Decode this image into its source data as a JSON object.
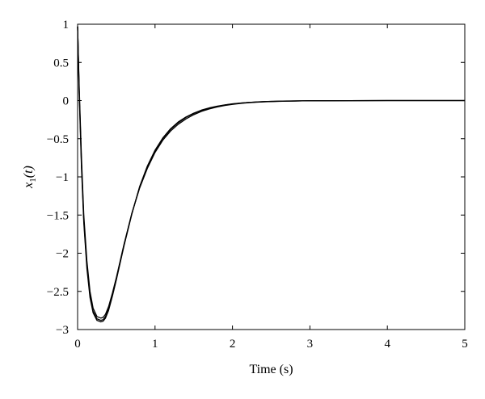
{
  "chart_data": {
    "type": "line",
    "title": "",
    "xlabel": "Time (s)",
    "ylabel": {
      "base": "x",
      "subscript": "1",
      "rest": "(t)"
    },
    "xlim": [
      0,
      5
    ],
    "ylim": [
      -3,
      1
    ],
    "xticks": [
      0,
      1,
      2,
      3,
      4,
      5
    ],
    "xtick_labels": [
      "0",
      "1",
      "2",
      "3",
      "4",
      "5"
    ],
    "yticks": [
      1,
      0.5,
      0,
      -0.5,
      -1,
      -1.5,
      -2,
      -2.5,
      -3
    ],
    "ytick_labels": [
      "1",
      "0.5",
      "0",
      "−0.5",
      "−1",
      "−1.5",
      "−2",
      "−2.5",
      "−3"
    ],
    "grid": false,
    "legend": "none",
    "line_color": "#000000",
    "series": [
      {
        "x": [
          0,
          0.02,
          0.05,
          0.08,
          0.12,
          0.16,
          0.2,
          0.25,
          0.3,
          0.33,
          0.36,
          0.4,
          0.45,
          0.5,
          0.6,
          0.7,
          0.8,
          0.9,
          1.0,
          1.1,
          1.2,
          1.3,
          1.4,
          1.5,
          1.6,
          1.7,
          1.8,
          1.9,
          2.0,
          2.1,
          2.2,
          2.3,
          2.4,
          2.5,
          2.6,
          2.7,
          2.8,
          2.9,
          3.0,
          3.2,
          3.5,
          4.0,
          4.5,
          5.0
        ],
        "y": [
          0.97,
          0.2,
          -0.75,
          -1.5,
          -2.1,
          -2.5,
          -2.72,
          -2.83,
          -2.85,
          -2.84,
          -2.8,
          -2.7,
          -2.52,
          -2.32,
          -1.88,
          -1.48,
          -1.15,
          -0.89,
          -0.68,
          -0.52,
          -0.4,
          -0.31,
          -0.24,
          -0.185,
          -0.142,
          -0.11,
          -0.085,
          -0.065,
          -0.05,
          -0.038,
          -0.029,
          -0.022,
          -0.017,
          -0.013,
          -0.01,
          -0.008,
          -0.006,
          -0.004,
          -0.003,
          -0.002,
          -0.001,
          0,
          0,
          0
        ]
      },
      {
        "x": [
          0,
          0.02,
          0.05,
          0.08,
          0.12,
          0.16,
          0.2,
          0.25,
          0.3,
          0.33,
          0.36,
          0.4,
          0.45,
          0.5,
          0.6,
          0.7,
          0.8,
          0.9,
          1.0,
          1.1,
          1.2,
          1.3,
          1.4,
          1.5,
          1.6,
          1.7,
          1.8,
          1.9,
          2.0,
          2.1,
          2.2,
          2.3,
          2.4,
          2.5,
          2.6,
          2.7,
          2.8,
          2.9,
          3.0,
          3.2,
          3.5,
          4.0,
          4.5,
          5.0
        ],
        "y": [
          0.97,
          0.15,
          -0.82,
          -1.56,
          -2.16,
          -2.55,
          -2.76,
          -2.86,
          -2.88,
          -2.87,
          -2.83,
          -2.73,
          -2.55,
          -2.34,
          -1.89,
          -1.48,
          -1.14,
          -0.87,
          -0.66,
          -0.5,
          -0.38,
          -0.29,
          -0.22,
          -0.17,
          -0.13,
          -0.1,
          -0.077,
          -0.059,
          -0.045,
          -0.034,
          -0.026,
          -0.02,
          -0.015,
          -0.011,
          -0.009,
          -0.007,
          -0.005,
          -0.004,
          -0.003,
          -0.002,
          -0.001,
          0,
          0,
          0
        ]
      },
      {
        "x": [
          0,
          0.02,
          0.05,
          0.08,
          0.12,
          0.16,
          0.2,
          0.25,
          0.3,
          0.33,
          0.36,
          0.4,
          0.45,
          0.5,
          0.6,
          0.7,
          0.8,
          0.9,
          1.0,
          1.1,
          1.2,
          1.3,
          1.4,
          1.5,
          1.6,
          1.7,
          1.8,
          1.9,
          2.0,
          2.1,
          2.2,
          2.3,
          2.4,
          2.5,
          2.6,
          2.7,
          2.8,
          2.9,
          3.0,
          3.2,
          3.5,
          4.0,
          4.5,
          5.0
        ],
        "y": [
          0.97,
          0.1,
          -0.88,
          -1.6,
          -2.2,
          -2.58,
          -2.78,
          -2.88,
          -2.9,
          -2.89,
          -2.85,
          -2.75,
          -2.56,
          -2.35,
          -1.9,
          -1.49,
          -1.13,
          -0.86,
          -0.65,
          -0.49,
          -0.37,
          -0.28,
          -0.215,
          -0.165,
          -0.125,
          -0.096,
          -0.074,
          -0.057,
          -0.043,
          -0.033,
          -0.025,
          -0.019,
          -0.014,
          -0.011,
          -0.008,
          -0.006,
          -0.005,
          -0.004,
          -0.003,
          -0.002,
          -0.001,
          0,
          0,
          0
        ]
      }
    ]
  }
}
